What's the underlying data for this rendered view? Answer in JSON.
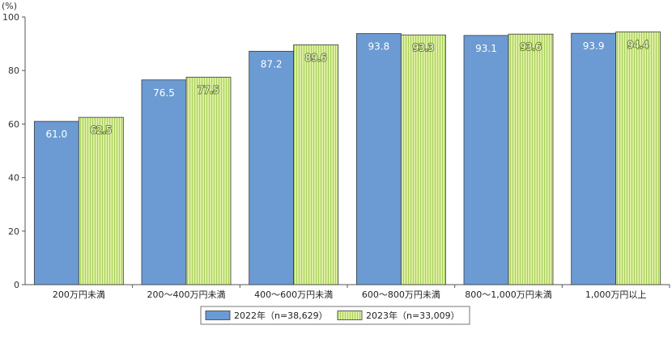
{
  "chart_data": {
    "type": "bar",
    "unit_label": "(%)",
    "ylim": [
      0,
      100
    ],
    "yticks": [
      0,
      20,
      40,
      60,
      80,
      100
    ],
    "grid": false,
    "legend_position": "bottom",
    "categories": [
      "200万円未満",
      "200～400万円未満",
      "400～600万円未満",
      "600～800万円未満",
      "800～1,000万円未満",
      "1,000万円以上"
    ],
    "series": [
      {
        "name": "2022年（n=38,629）",
        "values": [
          61.0,
          76.5,
          87.2,
          93.8,
          93.1,
          93.9
        ],
        "color": "#6b9bd2",
        "pattern": "solid"
      },
      {
        "name": "2023年（n=33,009）",
        "values": [
          62.5,
          77.5,
          89.6,
          93.3,
          93.6,
          94.4
        ],
        "color": "#d8eb9a",
        "pattern": "vertical-stripes"
      }
    ]
  }
}
